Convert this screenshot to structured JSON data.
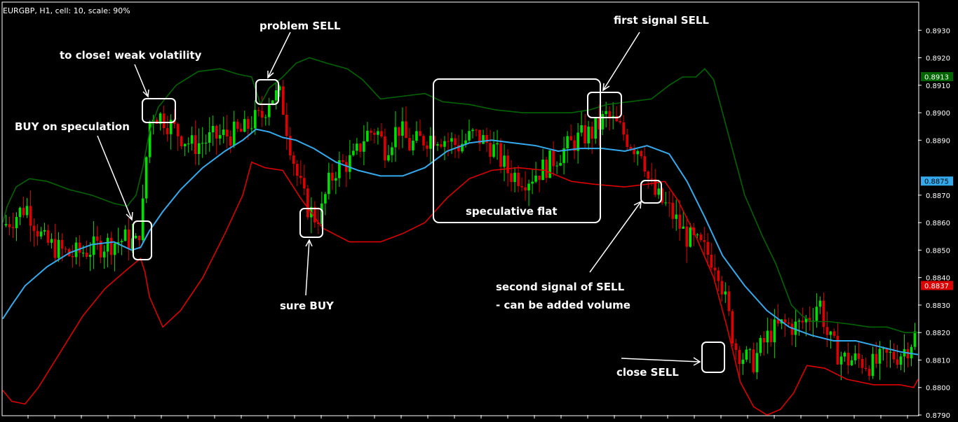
{
  "header": "EURGBP, H1, cell: 10, scale: 90%",
  "colors": {
    "background": "#000000",
    "frame": "#ffffff",
    "up_candle": "#00e000",
    "down_candle": "#e00000",
    "upper_band": "#006400",
    "middle_band": "#33aaee",
    "lower_band": "#dd0000",
    "annotation": "#ffffff"
  },
  "chart_data": {
    "type": "candlestick",
    "instrument": "EURGBP",
    "timeframe": "H1",
    "ylim": [
      0.879,
      0.894
    ],
    "yticks": [
      "0.8930",
      "0.8920",
      "0.8910",
      "0.8900",
      "0.8890",
      "0.8870",
      "0.8860",
      "0.8850",
      "0.8840",
      "0.8830",
      "0.8820",
      "0.8810",
      "0.8800",
      "0.8790"
    ],
    "price_badges": [
      {
        "label": "0.8913",
        "color": "#006400"
      },
      {
        "label": "0.8875",
        "color": "#33aaee"
      },
      {
        "label": "0.8837",
        "color": "#dd0000"
      }
    ],
    "candle_count": 260,
    "close_path": [
      [
        0,
        0.8859
      ],
      [
        10,
        0.8866
      ],
      [
        18,
        0.8853
      ],
      [
        30,
        0.8848
      ],
      [
        45,
        0.8852
      ],
      [
        55,
        0.8854
      ],
      [
        60,
        0.8852
      ],
      [
        63,
        0.8868
      ],
      [
        65,
        0.8895
      ],
      [
        67,
        0.89
      ],
      [
        72,
        0.8898
      ],
      [
        78,
        0.8893
      ],
      [
        85,
        0.8888
      ],
      [
        95,
        0.8891
      ],
      [
        108,
        0.8893
      ],
      [
        112,
        0.8897
      ],
      [
        116,
        0.8898
      ],
      [
        120,
        0.8906
      ],
      [
        125,
        0.8906
      ],
      [
        128,
        0.8893
      ],
      [
        132,
        0.8878
      ],
      [
        136,
        0.8867
      ],
      [
        140,
        0.8862
      ],
      [
        143,
        0.8863
      ],
      [
        146,
        0.8873
      ],
      [
        150,
        0.888
      ],
      [
        158,
        0.8883
      ],
      [
        163,
        0.8892
      ],
      [
        168,
        0.8894
      ],
      [
        172,
        0.8887
      ],
      [
        178,
        0.8895
      ],
      [
        183,
        0.8888
      ],
      [
        188,
        0.889
      ],
      [
        195,
        0.8892
      ],
      [
        205,
        0.8888
      ],
      [
        212,
        0.8892
      ],
      [
        220,
        0.8888
      ],
      [
        228,
        0.8878
      ],
      [
        236,
        0.8876
      ],
      [
        244,
        0.888
      ],
      [
        252,
        0.8886
      ],
      [
        260,
        0.8891
      ],
      [
        266,
        0.8893
      ],
      [
        272,
        0.8899
      ],
      [
        278,
        0.8894
      ],
      [
        284,
        0.8888
      ],
      [
        288,
        0.8887
      ],
      [
        291,
        0.8875
      ],
      [
        294,
        0.887
      ],
      [
        300,
        0.8865
      ],
      [
        308,
        0.8855
      ],
      [
        316,
        0.885
      ],
      [
        322,
        0.8845
      ],
      [
        326,
        0.883
      ],
      [
        330,
        0.8815
      ],
      [
        334,
        0.8811
      ],
      [
        338,
        0.8809
      ],
      [
        342,
        0.8815
      ],
      [
        346,
        0.882
      ],
      [
        352,
        0.8823
      ],
      [
        358,
        0.8822
      ],
      [
        364,
        0.8826
      ],
      [
        368,
        0.8832
      ],
      [
        372,
        0.8818
      ],
      [
        376,
        0.8813
      ],
      [
        380,
        0.881
      ],
      [
        386,
        0.881
      ],
      [
        392,
        0.8808
      ],
      [
        398,
        0.8811
      ],
      [
        404,
        0.8812
      ],
      [
        408,
        0.8815
      ],
      [
        412,
        0.882
      ]
    ],
    "series": [
      {
        "name": "Upper Bollinger Band",
        "values": [
          [
            0,
            0.886
          ],
          [
            2,
            0.8866
          ],
          [
            6,
            0.8873
          ],
          [
            12,
            0.8876
          ],
          [
            20,
            0.8875
          ],
          [
            30,
            0.8872
          ],
          [
            40,
            0.887
          ],
          [
            50,
            0.8867
          ],
          [
            56,
            0.8866
          ],
          [
            60,
            0.887
          ],
          [
            63,
            0.888
          ],
          [
            66,
            0.8893
          ],
          [
            70,
            0.8902
          ],
          [
            78,
            0.891
          ],
          [
            88,
            0.8915
          ],
          [
            98,
            0.8916
          ],
          [
            106,
            0.8914
          ],
          [
            112,
            0.8913
          ],
          [
            116,
            0.8903
          ],
          [
            120,
            0.8909
          ],
          [
            126,
            0.8913
          ],
          [
            132,
            0.8918
          ],
          [
            138,
            0.892
          ],
          [
            146,
            0.8918
          ],
          [
            155,
            0.8916
          ],
          [
            162,
            0.8912
          ],
          [
            170,
            0.8905
          ],
          [
            180,
            0.8906
          ],
          [
            190,
            0.8907
          ],
          [
            198,
            0.8904
          ],
          [
            210,
            0.8903
          ],
          [
            222,
            0.8901
          ],
          [
            234,
            0.89
          ],
          [
            246,
            0.89
          ],
          [
            256,
            0.89
          ],
          [
            264,
            0.8901
          ],
          [
            272,
            0.8903
          ],
          [
            282,
            0.8904
          ],
          [
            292,
            0.8905
          ],
          [
            300,
            0.891
          ],
          [
            306,
            0.8913
          ],
          [
            312,
            0.8913
          ],
          [
            316,
            0.8916
          ],
          [
            320,
            0.8912
          ],
          [
            326,
            0.8894
          ],
          [
            334,
            0.887
          ],
          [
            342,
            0.8855
          ],
          [
            348,
            0.8845
          ],
          [
            355,
            0.883
          ],
          [
            360,
            0.8826
          ],
          [
            364,
            0.8824
          ],
          [
            372,
            0.8824
          ],
          [
            382,
            0.8823
          ],
          [
            390,
            0.8822
          ],
          [
            398,
            0.8822
          ],
          [
            406,
            0.882
          ],
          [
            412,
            0.882
          ]
        ]
      },
      {
        "name": "Middle Bollinger Band",
        "values": [
          [
            0,
            0.8825
          ],
          [
            4,
            0.883
          ],
          [
            10,
            0.8837
          ],
          [
            20,
            0.8844
          ],
          [
            30,
            0.8849
          ],
          [
            40,
            0.8852
          ],
          [
            50,
            0.8853
          ],
          [
            58,
            0.885
          ],
          [
            62,
            0.8851
          ],
          [
            66,
            0.8857
          ],
          [
            72,
            0.8864
          ],
          [
            80,
            0.8872
          ],
          [
            90,
            0.888
          ],
          [
            100,
            0.8886
          ],
          [
            108,
            0.889
          ],
          [
            114,
            0.8894
          ],
          [
            120,
            0.8893
          ],
          [
            126,
            0.8891
          ],
          [
            132,
            0.889
          ],
          [
            140,
            0.8887
          ],
          [
            150,
            0.8882
          ],
          [
            160,
            0.8879
          ],
          [
            170,
            0.8877
          ],
          [
            180,
            0.8877
          ],
          [
            190,
            0.888
          ],
          [
            200,
            0.8886
          ],
          [
            210,
            0.8889
          ],
          [
            220,
            0.889
          ],
          [
            230,
            0.8889
          ],
          [
            240,
            0.8888
          ],
          [
            250,
            0.8886
          ],
          [
            260,
            0.8887
          ],
          [
            270,
            0.8887
          ],
          [
            280,
            0.8886
          ],
          [
            290,
            0.8888
          ],
          [
            300,
            0.8885
          ],
          [
            308,
            0.8875
          ],
          [
            316,
            0.8862
          ],
          [
            324,
            0.8848
          ],
          [
            334,
            0.8837
          ],
          [
            344,
            0.8828
          ],
          [
            354,
            0.8822
          ],
          [
            364,
            0.8819
          ],
          [
            374,
            0.8817
          ],
          [
            384,
            0.8817
          ],
          [
            394,
            0.8815
          ],
          [
            404,
            0.8813
          ],
          [
            412,
            0.8812
          ]
        ]
      },
      {
        "name": "Lower Bollinger Band",
        "values": [
          [
            0,
            0.8799
          ],
          [
            4,
            0.8795
          ],
          [
            10,
            0.8794
          ],
          [
            16,
            0.88
          ],
          [
            26,
            0.8813
          ],
          [
            36,
            0.8826
          ],
          [
            46,
            0.8836
          ],
          [
            56,
            0.8843
          ],
          [
            62,
            0.8847
          ],
          [
            64,
            0.8842
          ],
          [
            66,
            0.8833
          ],
          [
            72,
            0.8822
          ],
          [
            80,
            0.8828
          ],
          [
            90,
            0.884
          ],
          [
            100,
            0.8856
          ],
          [
            108,
            0.887
          ],
          [
            112,
            0.8882
          ],
          [
            118,
            0.888
          ],
          [
            126,
            0.8879
          ],
          [
            134,
            0.8869
          ],
          [
            144,
            0.8858
          ],
          [
            156,
            0.8853
          ],
          [
            170,
            0.8853
          ],
          [
            180,
            0.8856
          ],
          [
            190,
            0.886
          ],
          [
            200,
            0.8869
          ],
          [
            210,
            0.8876
          ],
          [
            220,
            0.8879
          ],
          [
            232,
            0.888
          ],
          [
            244,
            0.8879
          ],
          [
            256,
            0.8875
          ],
          [
            266,
            0.8874
          ],
          [
            280,
            0.8873
          ],
          [
            290,
            0.8874
          ],
          [
            298,
            0.8875
          ],
          [
            304,
            0.8868
          ],
          [
            312,
            0.8855
          ],
          [
            320,
            0.884
          ],
          [
            326,
            0.8822
          ],
          [
            332,
            0.8802
          ],
          [
            338,
            0.8793
          ],
          [
            344,
            0.879
          ],
          [
            350,
            0.8792
          ],
          [
            356,
            0.8798
          ],
          [
            362,
            0.8808
          ],
          [
            370,
            0.8807
          ],
          [
            380,
            0.8803
          ],
          [
            392,
            0.8801
          ],
          [
            404,
            0.8801
          ],
          [
            410,
            0.88
          ],
          [
            412,
            0.8803
          ]
        ]
      }
    ],
    "annotations": {
      "close_weak_volatility": "to close! weak volatility",
      "problem_sell": "problem SELL",
      "buy_on_speculation": "BUY on speculation",
      "sure_buy": "sure BUY",
      "speculative_flat": "speculative flat",
      "first_signal_sell": "first signal SELL",
      "second_signal_line1": "second signal of SELL",
      "second_signal_line2": "- can be added volume",
      "close_sell": "close SELL"
    }
  }
}
